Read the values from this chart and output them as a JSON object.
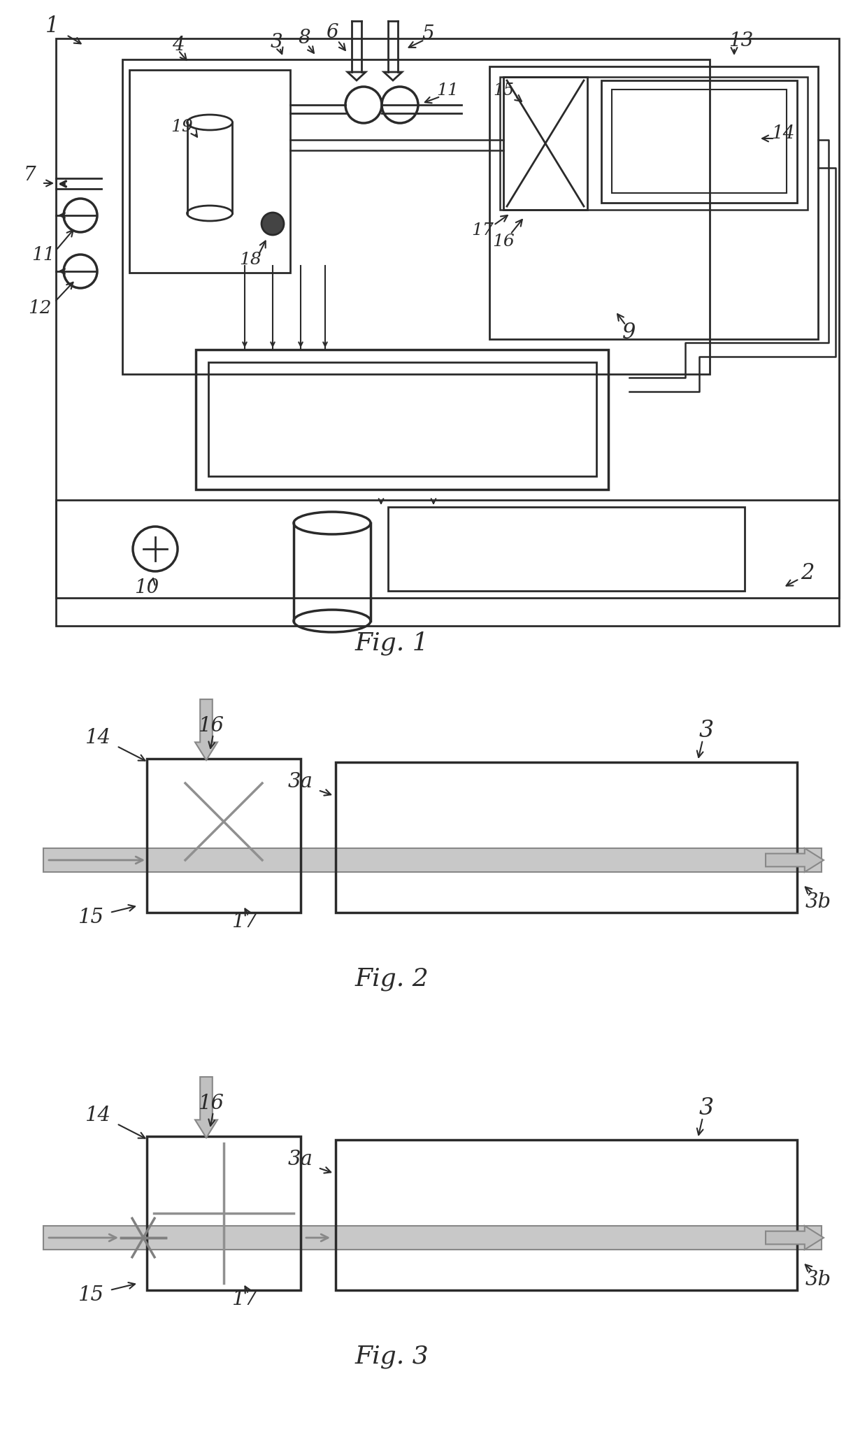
{
  "lc": "#2a2a2a",
  "gc": "#b0b0b0",
  "gce": "#888888",
  "white": "#ffffff",
  "fig1_caption": "Fig. 1",
  "fig2_caption": "Fig. 2",
  "fig3_caption": "Fig. 3"
}
